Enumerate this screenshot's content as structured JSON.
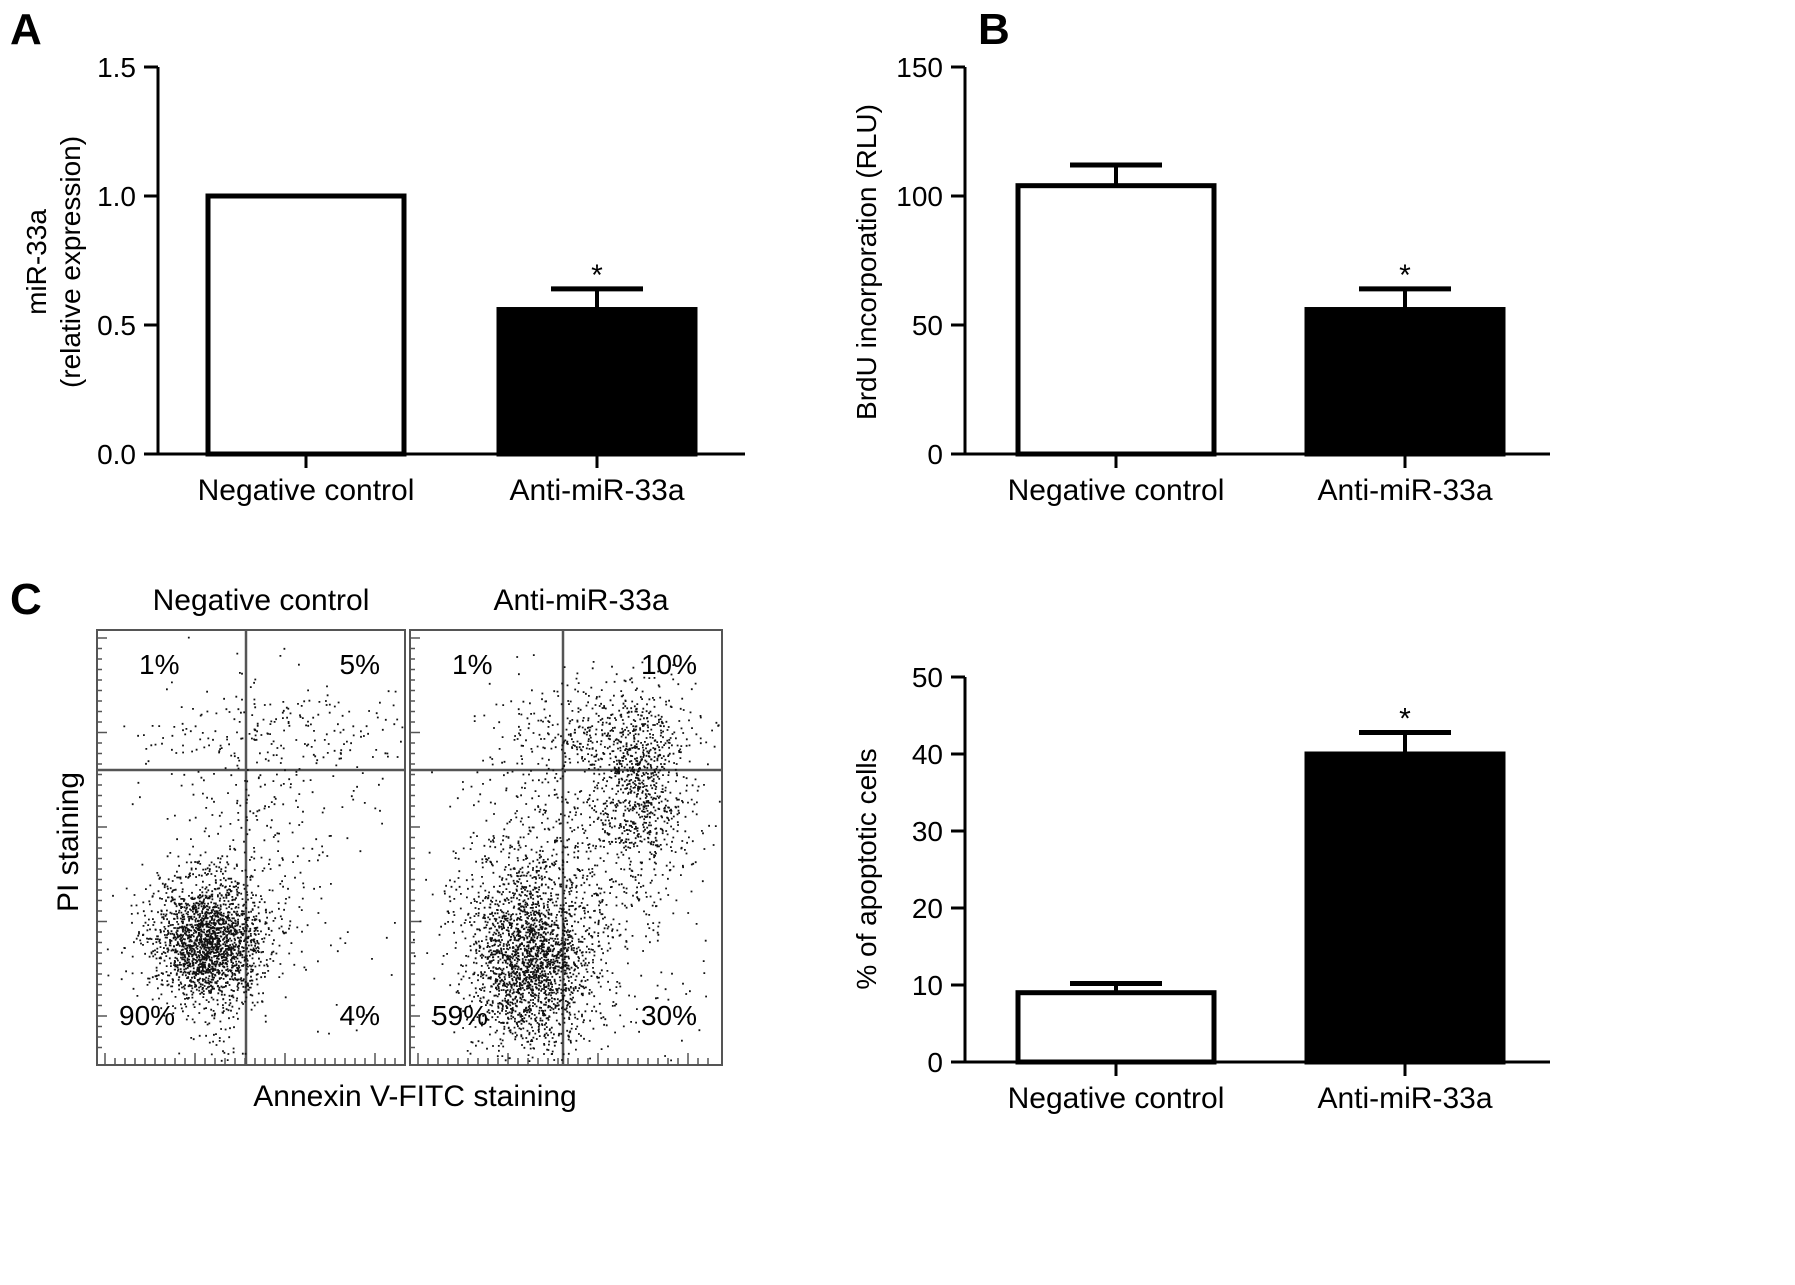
{
  "panels": {
    "A": "A",
    "B": "B",
    "C": "C"
  },
  "chart_data": [
    {
      "id": "A",
      "type": "bar",
      "categories": [
        "Negative control",
        "Anti-miR-33a"
      ],
      "values": [
        1.0,
        0.56
      ],
      "errors": [
        0,
        0.08
      ],
      "significance": [
        "",
        "*"
      ],
      "fills": [
        "#ffffff",
        "#000000"
      ],
      "ylabel_line1": "miR-33a",
      "ylabel_line2": "(relative expression)",
      "ylim": [
        0,
        1.5
      ],
      "yticks": [
        0.0,
        0.5,
        1.0,
        1.5
      ],
      "ytick_labels": [
        "0.0",
        "0.5",
        "1.0",
        "1.5"
      ]
    },
    {
      "id": "B",
      "type": "bar",
      "categories": [
        "Negative control",
        "Anti-miR-33a"
      ],
      "values": [
        104,
        56
      ],
      "errors": [
        8,
        8
      ],
      "significance": [
        "",
        "*"
      ],
      "fills": [
        "#ffffff",
        "#000000"
      ],
      "ylabel": "BrdU incorporation (RLU)",
      "ylim": [
        0,
        150
      ],
      "yticks": [
        0,
        50,
        100,
        150
      ],
      "ytick_labels": [
        "0",
        "50",
        "100",
        "150"
      ]
    },
    {
      "id": "C-flow",
      "type": "scatter",
      "xlabel": "Annexin V-FITC staining",
      "ylabel": "PI staining",
      "plots": [
        {
          "title": "Negative control",
          "quadrants": {
            "upper_left": "1%",
            "upper_right": "5%",
            "lower_left": "90%",
            "lower_right": "4%"
          }
        },
        {
          "title": "Anti-miR-33a",
          "quadrants": {
            "upper_left": "1%",
            "upper_right": "10%",
            "lower_left": "59%",
            "lower_right": "30%"
          }
        }
      ]
    },
    {
      "id": "C-bar",
      "type": "bar",
      "categories": [
        "Negative control",
        "Anti-miR-33a"
      ],
      "values": [
        9,
        40
      ],
      "errors": [
        1.2,
        2.8
      ],
      "significance": [
        "",
        "*"
      ],
      "fills": [
        "#ffffff",
        "#000000"
      ],
      "ylabel": "% of apoptotic cells",
      "ylim": [
        0,
        50
      ],
      "yticks": [
        0,
        10,
        20,
        30,
        40,
        50
      ],
      "ytick_labels": [
        "0",
        "10",
        "20",
        "30",
        "40",
        "50"
      ]
    }
  ]
}
